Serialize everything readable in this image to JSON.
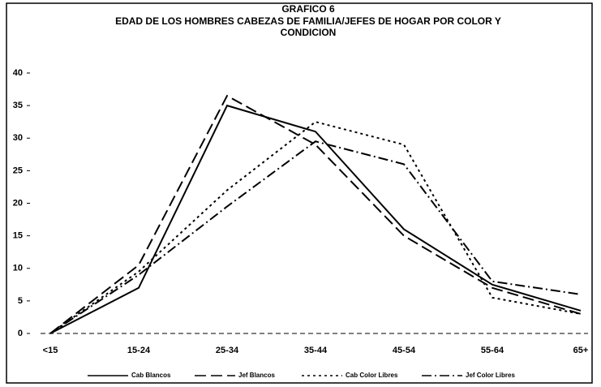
{
  "chart_data": {
    "type": "line",
    "title": "GRAFICO 6",
    "subtitle": [
      "EDAD DE LOS HOMBRES CABEZAS DE FAMILIA/JEFES DE HOGAR POR COLOR Y",
      "CONDICION"
    ],
    "categories": [
      "<15",
      "15-24",
      "25-34",
      "35-44",
      "45-54",
      "55-64",
      "65+"
    ],
    "series": [
      {
        "name": "Cab Blancos",
        "color": "#000000",
        "values": [
          0,
          7,
          35,
          31,
          16,
          7.5,
          3.5
        ]
      },
      {
        "name": "Jef Blancos",
        "color": "#000000",
        "values": [
          0,
          10.5,
          36.5,
          29,
          15,
          7,
          3
        ]
      },
      {
        "name": "Cab Color Libres",
        "color": "#000000",
        "values": [
          0,
          9.5,
          22,
          32.5,
          29,
          5.5,
          3
        ]
      },
      {
        "name": "Jef Color Libres",
        "color": "#000000",
        "values": [
          0,
          9,
          19.5,
          29.5,
          26,
          8,
          6
        ]
      }
    ],
    "ylim": [
      0,
      40
    ],
    "yticks": [
      0,
      5,
      10,
      15,
      20,
      25,
      30,
      35,
      40
    ],
    "grid": false
  }
}
